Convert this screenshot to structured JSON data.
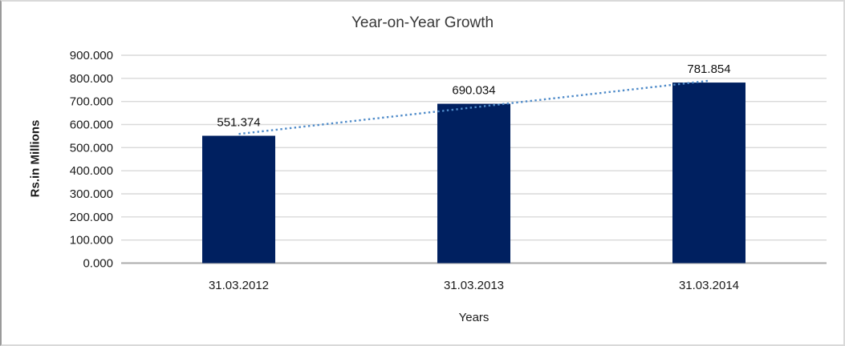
{
  "chart_data": {
    "type": "bar",
    "title": "Year-on-Year Growth",
    "categories": [
      "31.03.2012",
      "31.03.2013",
      "31.03.2014"
    ],
    "values": [
      551.374,
      690.034,
      781.854
    ],
    "value_labels": [
      "551.374",
      "690.034",
      "781.854"
    ],
    "xlabel": "Years",
    "ylabel": "Rs.in Millions",
    "ylim": [
      0,
      900
    ],
    "ytick_values": [
      0,
      100,
      200,
      300,
      400,
      500,
      600,
      700,
      800,
      900
    ],
    "ytick_labels": [
      "0.000",
      "100.000",
      "200.000",
      "300.000",
      "400.000",
      "500.000",
      "600.000",
      "700.000",
      "800.000",
      "900.000"
    ],
    "grid": "horizontal",
    "legend": "none",
    "trendline": {
      "type": "linear",
      "style": "dotted",
      "start_value": 559.2,
      "end_value": 789.7
    },
    "colors": {
      "bar": "#002060",
      "trendline": "#4f8bc9",
      "gridline": "#d9d9d9",
      "axis": "#ababab",
      "text": "#1a1a1a"
    }
  }
}
